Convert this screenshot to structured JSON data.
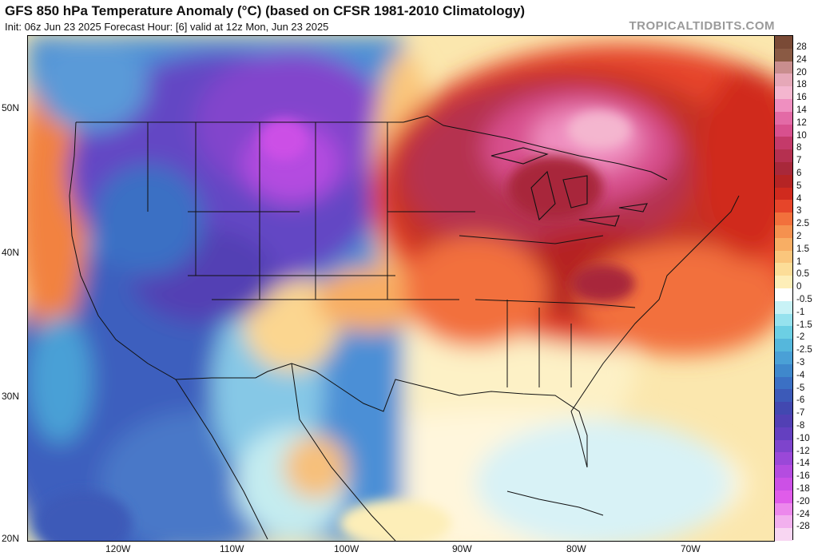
{
  "header": {
    "title": "GFS 850 hPa Temperature Anomaly (°C) (based on CFSR 1981-2010 Climatology)",
    "subtitle": "Init: 06z Jun 23 2025   Forecast Hour: [6]   valid at 12z Mon, Jun 23 2025",
    "brand": "TROPICALTIDBITS.COM"
  },
  "axes": {
    "lat_labels": [
      "50N",
      "40N",
      "30N",
      "20N"
    ],
    "lon_labels": [
      "120W",
      "110W",
      "100W",
      "90W",
      "80W",
      "70W"
    ]
  },
  "colorbar": {
    "levels": [
      "28",
      "24",
      "20",
      "18",
      "16",
      "14",
      "12",
      "10",
      "8",
      "7",
      "6",
      "5",
      "4",
      "3",
      "2.5",
      "2",
      "1.5",
      "1",
      "0.5",
      "0",
      "-0.5",
      "-1",
      "-1.5",
      "-2",
      "-2.5",
      "-3",
      "-4",
      "-5",
      "-6",
      "-7",
      "-8",
      "-10",
      "-12",
      "-14",
      "-16",
      "-18",
      "-20",
      "-24",
      "-28"
    ],
    "colors": [
      "#8a5a44",
      "#c98e8e",
      "#e6a8b8",
      "#f4b6cf",
      "#ef8fc0",
      "#e36aa6",
      "#d8508e",
      "#c43a6a",
      "#b53050",
      "#a8283a",
      "#b52424",
      "#d02a1e",
      "#e6452a",
      "#f2703c",
      "#f5914f",
      "#f8ae64",
      "#fac67c",
      "#fcdd98",
      "#fdeeb8",
      "#ffffff",
      "#c8f2f6",
      "#96e2ee",
      "#6ccfe4",
      "#55b7dc",
      "#4aa0d6",
      "#3f88cc",
      "#3b70c4",
      "#3c5ab8",
      "#4248b0",
      "#5240b4",
      "#6440c0",
      "#7e44cc",
      "#9a48d8",
      "#b44ce0",
      "#cc50e6",
      "#e05cea",
      "#ec88ec",
      "#f2b0ee",
      "#f8d6f2"
    ],
    "top_color": "#7a4a36"
  }
}
